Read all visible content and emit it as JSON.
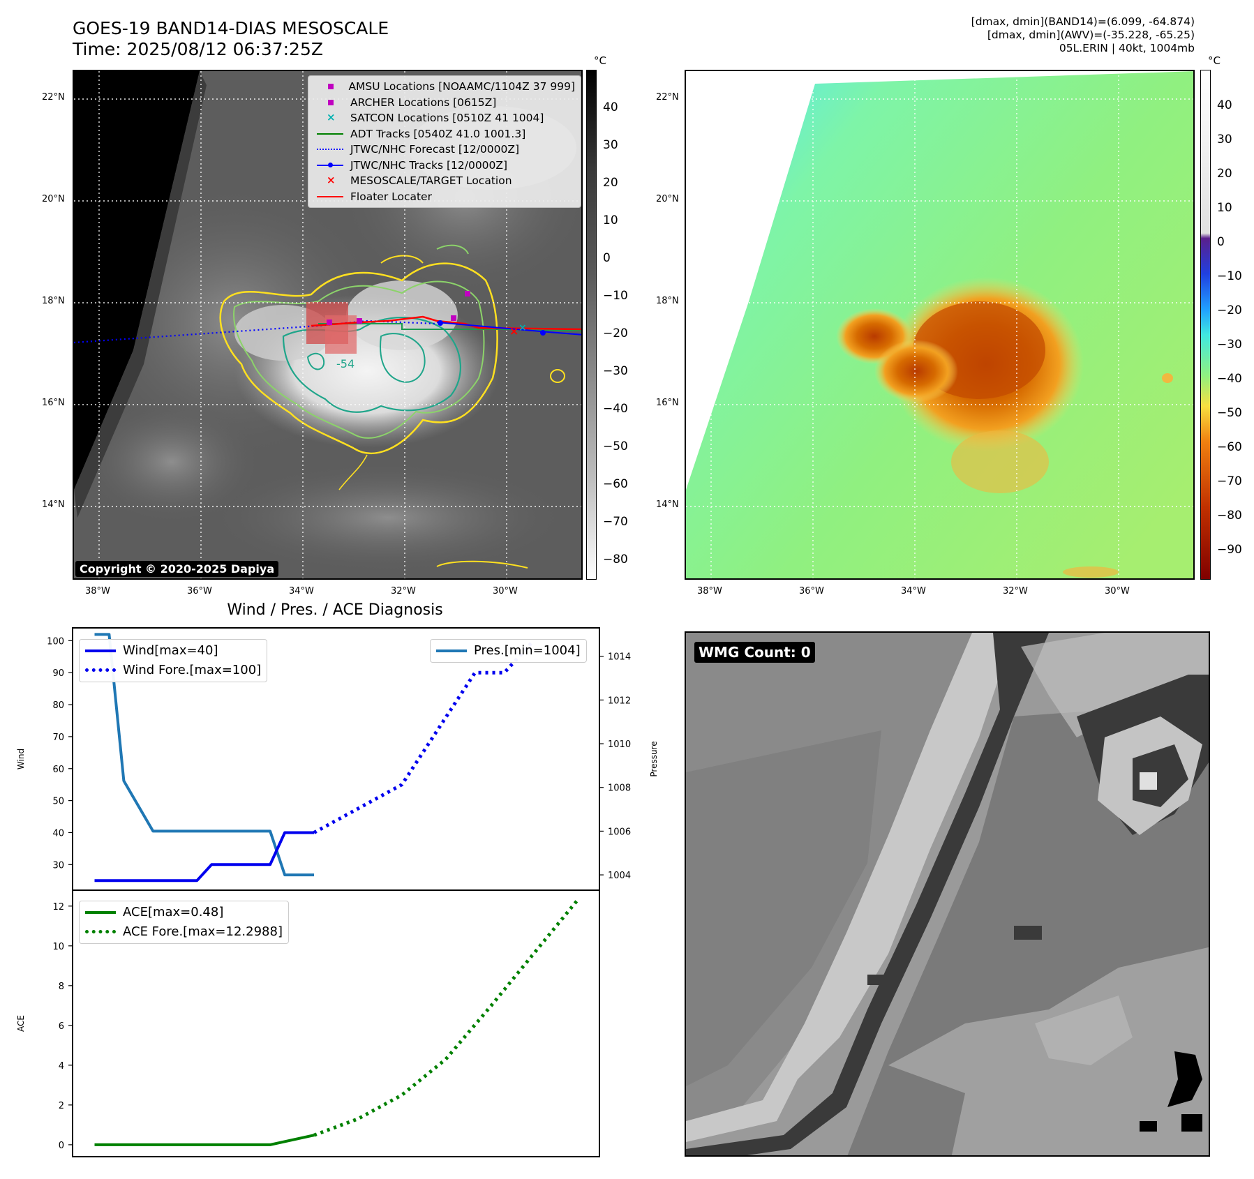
{
  "header": {
    "title_line1": "GOES-19 BAND14-DIAS MESOSCALE",
    "title_line2": "Time: 2025/08/12 06:37:25Z",
    "info_line1": "[dmax, dmin](BAND14)=(6.099, -64.874)",
    "info_line2": "[dmax, dmin](AWV)=(-35.228, -65.25)",
    "info_line3": "05L.ERIN | 40kt, 1004mb"
  },
  "map": {
    "lat_labels": [
      "22°N",
      "20°N",
      "18°N",
      "16°N",
      "14°N"
    ],
    "lon_labels": [
      "38°W",
      "36°W",
      "34°W",
      "32°W",
      "30°W"
    ],
    "copyright": "Copyright © 2020-2025 Dapiya",
    "contour_label": "-54",
    "legend": [
      {
        "label": "AMSU Locations [NOAAMC/1104Z 37 999]",
        "marker": "square",
        "color": "#c000c0"
      },
      {
        "label": "ARCHER Locations [0615Z]",
        "marker": "square",
        "color": "#c000c0"
      },
      {
        "label": "SATCON Locations [0510Z 41 1004]",
        "marker": "x",
        "color": "#00b0b0"
      },
      {
        "label": "ADT Tracks [0540Z 41.0 1001.3]",
        "marker": "line",
        "color": "#008000"
      },
      {
        "label": "JTWC/NHC Forecast [12/0000Z]",
        "marker": "dotted",
        "color": "#0000ff"
      },
      {
        "label": "JTWC/NHC Tracks [12/0000Z]",
        "marker": "line-dot",
        "color": "#0000ff"
      },
      {
        "label": "MESOSCALE/TARGET Location",
        "marker": "x",
        "color": "#ff0000"
      },
      {
        "label": "Floater Locater",
        "marker": "line",
        "color": "#ff0000"
      }
    ]
  },
  "colorbar_left": {
    "unit": "°C",
    "ticks": [
      "40",
      "30",
      "20",
      "10",
      "0",
      "−10",
      "−20",
      "−30",
      "−40",
      "−50",
      "−60",
      "−70",
      "−80"
    ]
  },
  "colorbar_right": {
    "unit": "°C",
    "ticks": [
      "40",
      "30",
      "20",
      "10",
      "0",
      "−10",
      "−20",
      "−30",
      "−40",
      "−50",
      "−60",
      "−70",
      "−80",
      "−90"
    ]
  },
  "wmg": {
    "label": "WMG Count: 0"
  },
  "colors": {
    "wind": "#0000ee",
    "pressure": "#1f77b4",
    "ace": "#008000"
  },
  "chart_data": [
    {
      "type": "line",
      "title": "Wind / Pres. / ACE Diagnosis",
      "ylabel": "Wind",
      "ylim": [
        22,
        104
      ],
      "yticks": [
        30,
        40,
        50,
        60,
        70,
        80,
        90,
        100
      ],
      "xlim": [
        -1.5,
        34.5
      ],
      "series": [
        {
          "name": "Wind[max=40]",
          "style": "solid",
          "x": [
            0,
            7,
            8,
            10,
            12,
            13,
            15
          ],
          "values": [
            25,
            25,
            30,
            30,
            30,
            40,
            40
          ]
        },
        {
          "name": "Wind Fore.[max=100]",
          "style": "dotted",
          "x": [
            15,
            21,
            26,
            28,
            30
          ],
          "values": [
            40,
            55,
            90,
            90,
            100
          ]
        }
      ],
      "secondary": {
        "ylabel": "Pressure",
        "yticks": [
          1004,
          1006,
          1008,
          1010,
          1012,
          1014
        ],
        "ylim": [
          1003.3,
          1015.3
        ],
        "series": [
          {
            "name": "Pres.[min=1004]",
            "style": "solid",
            "x": [
              0,
              1,
              2,
              4,
              12,
              13,
              15
            ],
            "values": [
              1015,
              1015,
              1008.3,
              1006,
              1006,
              1004,
              1004
            ]
          }
        ]
      }
    },
    {
      "type": "line",
      "ylabel": "ACE",
      "ylim": [
        -0.6,
        12.8
      ],
      "yticks": [
        0,
        2,
        4,
        6,
        8,
        10,
        12
      ],
      "xlim": [
        -1.5,
        34.5
      ],
      "series": [
        {
          "name": "ACE[max=0.48]",
          "style": "solid",
          "x": [
            0,
            12,
            15
          ],
          "values": [
            0,
            0,
            0.48
          ]
        },
        {
          "name": "ACE Fore.[max=12.2988]",
          "style": "dotted",
          "x": [
            15,
            18,
            21,
            24,
            27,
            30,
            33
          ],
          "values": [
            0.48,
            1.3,
            2.5,
            4.3,
            6.9,
            9.6,
            12.3
          ]
        }
      ]
    }
  ]
}
